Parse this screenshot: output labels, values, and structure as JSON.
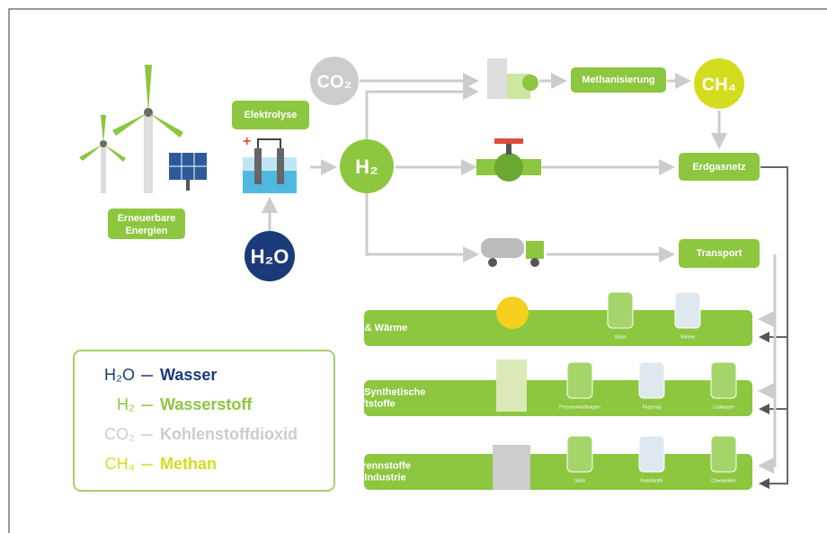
{
  "nodes": {
    "co2": "CO₂",
    "methanisierung": "Methanisierung",
    "ch4": "CH₄",
    "elektrolyse": "Elektrolyse",
    "h2": "H₂",
    "erdgasnetz": "Erdgasnetz",
    "renewables": [
      "Erneuerbare",
      "Energien"
    ],
    "h2o": "H₂O",
    "transport": "Transport"
  },
  "sectors": [
    {
      "title": [
        "Strom & Wärme"
      ],
      "items": [
        "Strom",
        "Wärme"
      ]
    },
    {
      "title": [
        "Mobilität / Synthetische",
        "Kraftstoffe"
      ],
      "items": [
        "Personenkraftwagen",
        "Flugzeug",
        "Lastwagen"
      ]
    },
    {
      "title": [
        "Roh-/Brennstoffe",
        "in der Industrie"
      ],
      "items": [
        "Stahl",
        "Kunststoffe",
        "Chemikalien"
      ]
    }
  ],
  "legend": [
    {
      "formula": "H₂O",
      "name": "Wasser"
    },
    {
      "formula": "H₂",
      "name": "Wasserstoff"
    },
    {
      "formula": "CO₂",
      "name": "Kohlenstoffdioxid"
    },
    {
      "formula": "CH₄",
      "name": "Methan"
    }
  ]
}
